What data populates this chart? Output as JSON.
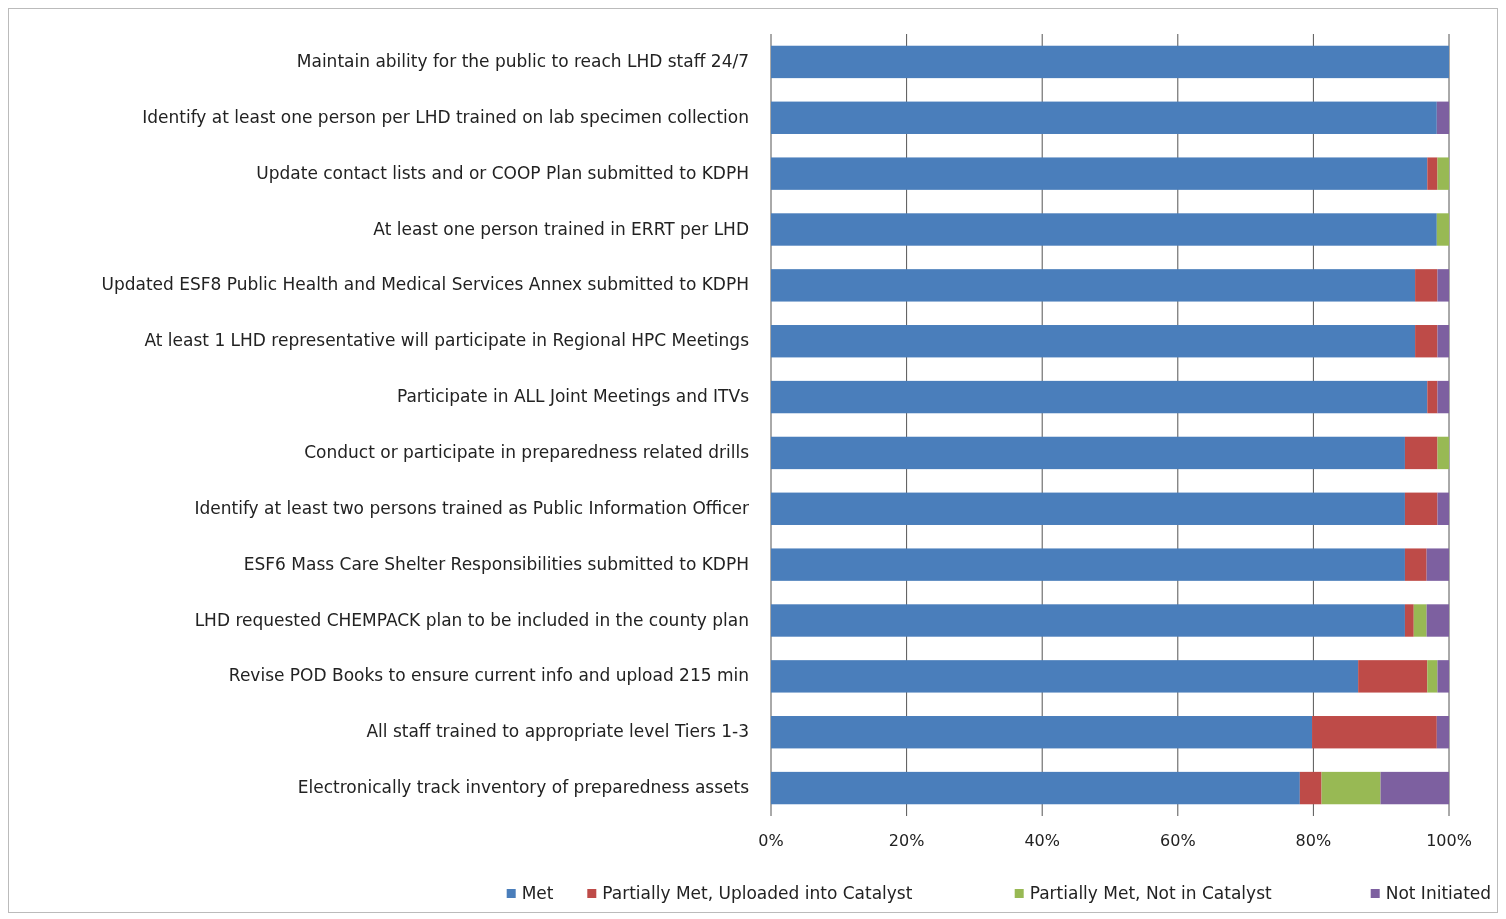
{
  "chart_data": {
    "type": "bar",
    "orientation": "horizontal",
    "stacked": true,
    "categories": [
      "Maintain ability for the public to reach LHD staff 24/7",
      "Identify at least one person per LHD trained on lab specimen collection",
      "Update contact lists and or COOP Plan submitted to KDPH",
      "At least one person trained in ERRT per LHD",
      "Updated ESF8 Public Health and Medical Services Annex submitted to KDPH",
      "At least 1 LHD representative will participate in Regional HPC Meetings",
      "Participate in ALL Joint Meetings and ITVs",
      "Conduct or participate in preparedness related drills",
      "Identify at least two persons trained as Public Information Officer",
      "ESF6 Mass Care Shelter Responsibilities submitted to KDPH",
      "LHD requested CHEMPACK plan to be included in the county plan",
      "Revise POD Books to ensure current info and upload 215 min",
      "All staff trained to appropriate level Tiers 1-3",
      "Electronically track inventory of preparedness assets"
    ],
    "series": [
      {
        "name": "Met",
        "color": "#4a7ebb",
        "values": [
          100,
          98.2,
          96.8,
          98.2,
          95,
          95,
          96.8,
          93.5,
          93.5,
          93.5,
          93.5,
          86.6,
          79.8,
          78
        ]
      },
      {
        "name": "Partially Met, Uploaded into Catalyst",
        "color": "#be4b48",
        "values": [
          0,
          0,
          1.5,
          0,
          3.3,
          3.3,
          1.5,
          4.8,
          4.8,
          3.2,
          1.3,
          10.2,
          18.4,
          3.2
        ]
      },
      {
        "name": "Partially Met, Not in Catalyst",
        "color": "#98b954",
        "values": [
          0,
          0,
          1.7,
          1.8,
          0,
          0,
          0,
          1.7,
          0,
          0,
          1.9,
          1.5,
          0,
          8.7
        ]
      },
      {
        "name": "Not Initiated",
        "color": "#7d60a0",
        "values": [
          0,
          1.8,
          0,
          0,
          1.7,
          1.7,
          1.7,
          0,
          1.7,
          3.3,
          3.3,
          1.7,
          1.8,
          10.1
        ]
      }
    ],
    "xlim": [
      0,
      100
    ],
    "xticks": [
      {
        "value": 0,
        "label": "0%"
      },
      {
        "value": 20,
        "label": "20%"
      },
      {
        "value": 40,
        "label": "40%"
      },
      {
        "value": 60,
        "label": "60%"
      },
      {
        "value": 80,
        "label": "80%"
      },
      {
        "value": 100,
        "label": "100%"
      }
    ],
    "grid": "x",
    "legend": "bottom"
  }
}
